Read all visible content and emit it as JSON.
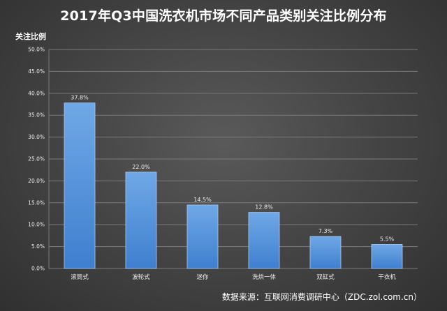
{
  "chart_data": {
    "type": "bar",
    "title": "2017年Q3中国洗衣机市场不同产品类别关注比例分布",
    "xlabel": "",
    "ylabel": "关注比例",
    "categories": [
      "滚筒式",
      "波轮式",
      "迷你",
      "洗烘一体",
      "双缸式",
      "干衣机"
    ],
    "values": [
      37.8,
      22.0,
      14.5,
      12.8,
      7.3,
      5.5
    ],
    "value_labels": [
      "37.8%",
      "22.0%",
      "14.5%",
      "12.8%",
      "7.3%",
      "5.5%"
    ],
    "ylim": [
      0,
      50
    ],
    "y_ticks": [
      0,
      5,
      10,
      15,
      20,
      25,
      30,
      35,
      40,
      45,
      50
    ],
    "y_tick_labels": [
      "0.0%",
      "5.0%",
      "10.0%",
      "15.0%",
      "20.0%",
      "25.0%",
      "30.0%",
      "35.0%",
      "40.0%",
      "45.0%",
      "50.0%"
    ],
    "grid": true,
    "source": "数据来源：互联网消费调研中心（ZDC.zol.com.cn）"
  },
  "colors": {
    "bar_top": "#6fa8e6",
    "bar_bottom": "#3f7fcf",
    "bar_border": "#a9cbf3",
    "grid": "#7b7b7b"
  }
}
